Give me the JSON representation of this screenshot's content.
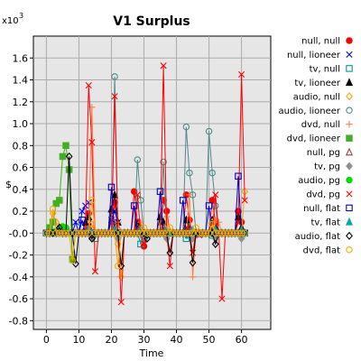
{
  "chart_data": {
    "type": "line",
    "title": "V1 Surplus",
    "xlabel": "Time",
    "ylabel": "$",
    "y_multiplier_label": "x10",
    "y_multiplier_exponent": "3",
    "xlim": [
      -4,
      69
    ],
    "ylim": [
      -0.88,
      1.8
    ],
    "x_ticks": [
      0,
      10,
      20,
      30,
      40,
      50,
      60
    ],
    "y_ticks": [
      -0.8,
      -0.6,
      -0.4,
      -0.2,
      0.0,
      0.2,
      0.4,
      0.6,
      0.8,
      1.0,
      1.2,
      1.4,
      1.6
    ],
    "y_tick_labels": [
      "-0.8",
      "-0.6",
      "-0.4",
      "-0.2",
      "-0.0",
      "0.2",
      "0.4",
      "0.6",
      "0.8",
      "1.0",
      "1.2",
      "1.4",
      "1.6"
    ],
    "grid": true,
    "legend_position": "right",
    "background_color": "#e6e6e6",
    "series": [
      {
        "name": "null, null",
        "marker": "circle",
        "color": "#ff0000",
        "filled": true,
        "x": [
          13,
          21,
          27,
          28,
          30,
          36,
          37,
          43,
          44,
          51,
          52,
          59,
          60
        ],
        "y": [
          0.18,
          0.28,
          0.38,
          0.1,
          -0.12,
          0.3,
          0.2,
          0.35,
          0.12,
          0.3,
          0.1,
          0.2,
          0.1
        ]
      },
      {
        "name": "null, lioneer",
        "marker": "x",
        "color": "#0000ff",
        "x": [
          9,
          11,
          12,
          13,
          20,
          21,
          22
        ],
        "y": [
          0.1,
          0.2,
          0.25,
          0.28,
          0.12,
          0.2,
          0.1
        ]
      },
      {
        "name": "tv, null",
        "marker": "square",
        "color": "#009999",
        "filled": false,
        "x": [
          6,
          15,
          22,
          29,
          30,
          43,
          44,
          51
        ],
        "y": [
          0.02,
          -0.05,
          -0.02,
          -0.1,
          -0.05,
          -0.05,
          -0.02,
          -0.02
        ]
      },
      {
        "name": "tv, lioneer",
        "marker": "triangle",
        "color": "#000000",
        "filled": true,
        "x": [
          4,
          12,
          13,
          20,
          21,
          22,
          28,
          29,
          35,
          36,
          43,
          44,
          51,
          52,
          59,
          60
        ],
        "y": [
          0.05,
          0.1,
          0.15,
          0.22,
          0.35,
          0.1,
          0.08,
          0.05,
          0.15,
          0.1,
          0.12,
          0.05,
          0.12,
          0.05,
          0.15,
          0.05
        ]
      },
      {
        "name": "audio, null",
        "marker": "diamond",
        "color": "#ffa500",
        "filled": false,
        "x": [
          2,
          3,
          14,
          21,
          22,
          23,
          35,
          37,
          51,
          61
        ],
        "y": [
          0.18,
          0.1,
          0.08,
          0.05,
          -0.1,
          -0.4,
          0.05,
          0.05,
          0.1,
          0.38
        ]
      },
      {
        "name": "audio, lioneer",
        "marker": "circle",
        "color": "#508a8a",
        "filled": false,
        "x": [
          21,
          28,
          29,
          36,
          43,
          44,
          45,
          50,
          51,
          52
        ],
        "y": [
          1.43,
          0.67,
          0.3,
          0.65,
          0.97,
          0.55,
          0.35,
          0.93,
          0.55,
          0.25
        ]
      },
      {
        "name": "dvd, null",
        "marker": "plus",
        "color": "#ff8040",
        "x": [
          14,
          22,
          29,
          37,
          44,
          45,
          52,
          53
        ],
        "y": [
          1.15,
          0.1,
          0.1,
          0.15,
          0.35,
          -0.4,
          0.12,
          0.1
        ]
      },
      {
        "name": "dvd, lioneer",
        "marker": "square",
        "color": "#40b020",
        "filled": true,
        "x": [
          1,
          2,
          3,
          4,
          5,
          6,
          7,
          8
        ],
        "y": [
          0.05,
          0.1,
          0.27,
          0.3,
          0.7,
          0.8,
          0.58,
          -0.24
        ]
      },
      {
        "name": "null, pg",
        "marker": "triangle",
        "color": "#a04040",
        "filled": false,
        "x": [
          13,
          21,
          28,
          36,
          44
        ],
        "y": [
          0.05,
          0.08,
          0.05,
          0.05,
          0.05
        ]
      },
      {
        "name": "tv, pg",
        "marker": "diamond",
        "color": "#909090",
        "filled": true,
        "x": [
          14,
          22,
          30,
          37,
          45,
          52,
          60
        ],
        "y": [
          -0.05,
          -0.05,
          -0.05,
          -0.05,
          -0.05,
          -0.05,
          -0.05
        ]
      },
      {
        "name": "audio, pg",
        "marker": "circle",
        "color": "#00e000",
        "filled": true,
        "x": [
          3,
          5,
          6,
          15,
          23
        ],
        "y": [
          0.02,
          0.06,
          0.05,
          0.0,
          0.0
        ]
      },
      {
        "name": "dvd, pg",
        "marker": "x",
        "color": "#ff0000",
        "x": [
          13,
          14,
          15,
          21,
          23,
          28,
          30,
          36,
          38,
          43,
          45,
          47,
          52,
          54,
          59,
          60,
          61
        ],
        "y": [
          1.35,
          0.83,
          -0.35,
          1.25,
          -0.63,
          0.35,
          -0.1,
          1.53,
          -0.3,
          0.05,
          -0.18,
          -0.02,
          0.35,
          -0.6,
          0.1,
          1.45,
          0.3
        ]
      },
      {
        "name": "null, flat",
        "marker": "square",
        "color": "#0000cc",
        "filled": false,
        "x": [
          11,
          20,
          27,
          35,
          42,
          50,
          59
        ],
        "y": [
          0.12,
          0.42,
          0.25,
          0.38,
          0.3,
          0.25,
          0.52
        ]
      },
      {
        "name": "tv, flat",
        "marker": "triangle",
        "color": "#00aaaa",
        "filled": true,
        "x": [
          4,
          13,
          21,
          29,
          37,
          45,
          52,
          60
        ],
        "y": [
          0.03,
          0.03,
          0.03,
          0.03,
          0.03,
          0.03,
          0.03,
          0.03
        ]
      },
      {
        "name": "audio, flat",
        "marker": "diamond",
        "color": "#000000",
        "filled": false,
        "x": [
          4,
          7,
          9,
          14,
          23,
          31,
          38,
          45,
          52
        ],
        "y": [
          0.05,
          0.7,
          -0.28,
          -0.05,
          -0.3,
          -0.05,
          -0.18,
          -0.27,
          -0.1
        ]
      },
      {
        "name": "dvd, flat",
        "marker": "circle",
        "color": "#ffa500",
        "filled": false,
        "x": [
          2,
          8,
          14,
          22,
          30,
          38,
          46,
          51
        ],
        "y": [
          0.22,
          -0.25,
          0.3,
          -0.3,
          0.05,
          0.05,
          0.05,
          0.08
        ]
      }
    ]
  }
}
